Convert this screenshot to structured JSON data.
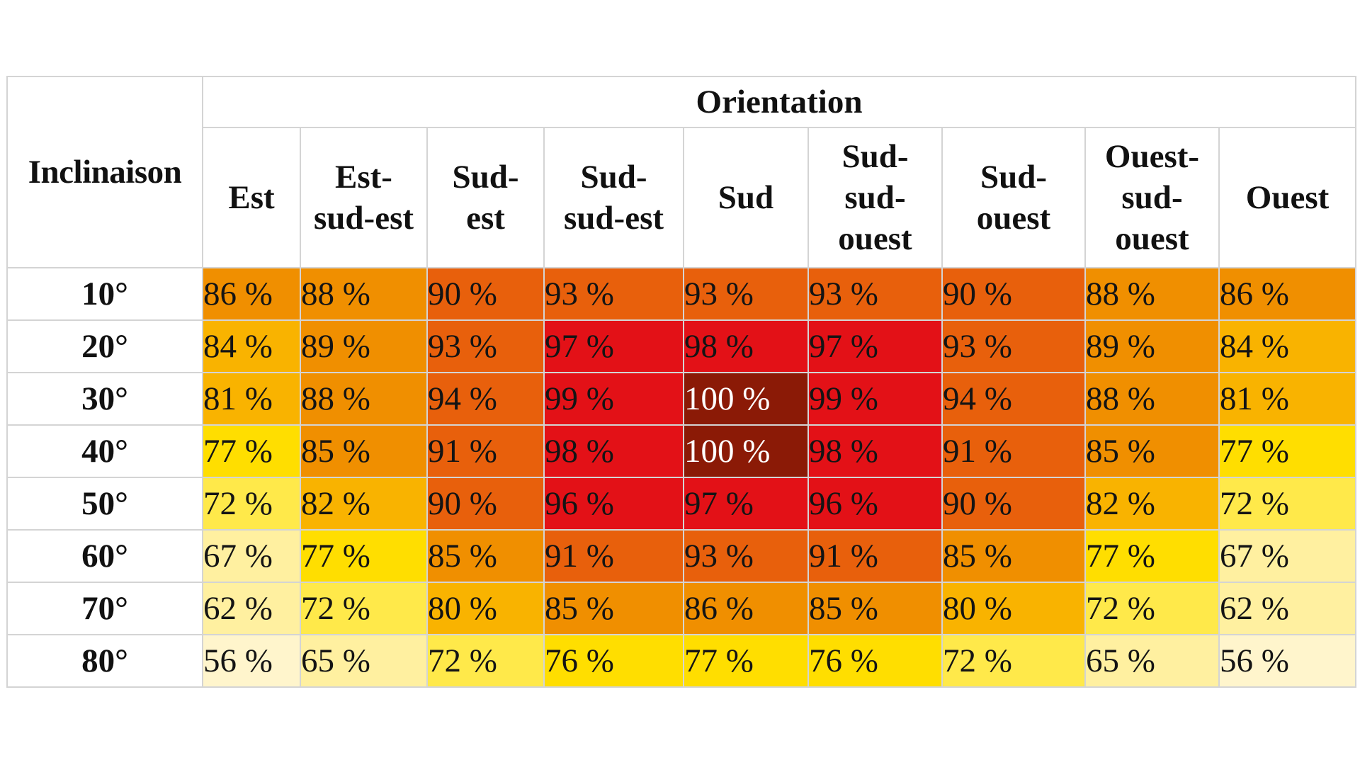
{
  "chart_data": {
    "type": "heatmap",
    "corner_label": "Inclinaison",
    "group_label": "Orientation",
    "columns": [
      "Est",
      "Est-sud-est",
      "Sud-est",
      "Sud-sud-est",
      "Sud",
      "Sud-sud-ouest",
      "Sud-ouest",
      "Ouest-sud-ouest",
      "Ouest"
    ],
    "rows": [
      "10°",
      "20°",
      "30°",
      "40°",
      "50°",
      "60°",
      "70°",
      "80°"
    ],
    "values": [
      [
        86,
        88,
        90,
        93,
        93,
        93,
        90,
        88,
        86
      ],
      [
        84,
        89,
        93,
        97,
        98,
        97,
        93,
        89,
        84
      ],
      [
        81,
        88,
        94,
        99,
        100,
        99,
        94,
        88,
        81
      ],
      [
        77,
        85,
        91,
        98,
        100,
        98,
        91,
        85,
        77
      ],
      [
        72,
        82,
        90,
        96,
        97,
        96,
        90,
        82,
        72
      ],
      [
        67,
        77,
        85,
        91,
        93,
        91,
        85,
        77,
        67
      ],
      [
        62,
        72,
        80,
        85,
        86,
        85,
        80,
        72,
        62
      ],
      [
        56,
        65,
        72,
        76,
        77,
        76,
        72,
        65,
        56
      ]
    ],
    "value_suffix": " %",
    "color_scale": [
      {
        "max": 59,
        "color": "#fff5cc"
      },
      {
        "max": 69,
        "color": "#fff0a0"
      },
      {
        "max": 74,
        "color": "#ffe94a"
      },
      {
        "max": 79,
        "color": "#ffde00"
      },
      {
        "max": 84,
        "color": "#f9b300"
      },
      {
        "max": 89,
        "color": "#f08f00"
      },
      {
        "max": 95,
        "color": "#e8600c"
      },
      {
        "max": 99,
        "color": "#e31117"
      },
      {
        "max": 100,
        "color": "#8b1a06"
      }
    ],
    "text_color_dark": "#141414",
    "text_color_light": "#ffffff",
    "header_background": "#ffffff",
    "border_color": "#d4d4d4"
  }
}
